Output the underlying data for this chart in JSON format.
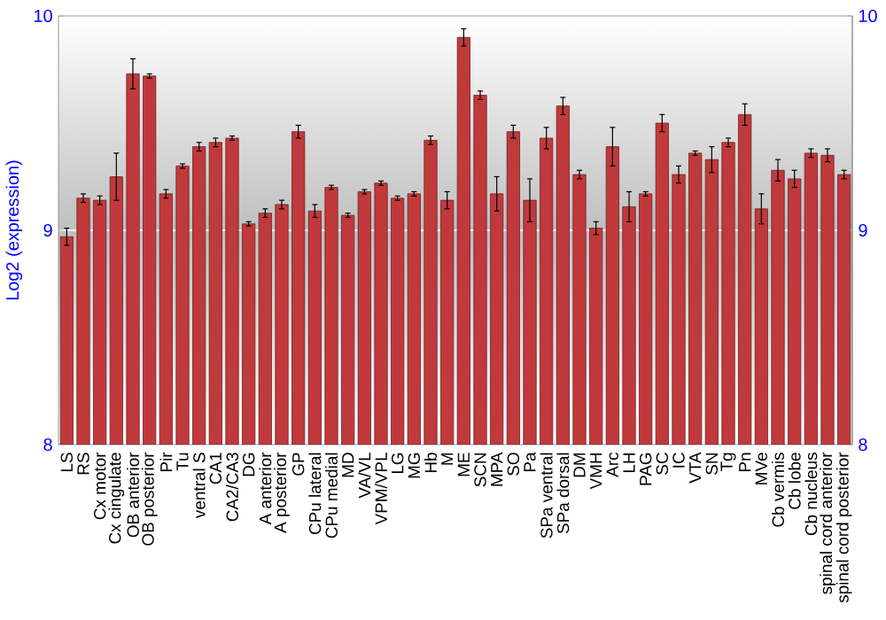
{
  "chart_data": {
    "type": "bar",
    "ylabel": "Log2 (expression)",
    "color": "#c0393b",
    "categories": [
      "LS",
      "RS",
      "Cx motor",
      "Cx cingulate",
      "OB anterior",
      "OB posterior",
      "Pir",
      "Tu",
      "ventral S",
      "CA1",
      "CA2/CA3",
      "DG",
      "A anterior",
      "A posterior",
      "GP",
      "CPu lateral",
      "CPu medial",
      "MD",
      "VA/VL",
      "VPM/VPL",
      "LG",
      "MG",
      "Hb",
      "M",
      "ME",
      "SCN",
      "MPA",
      "SO",
      "Pa",
      "SPa ventral",
      "SPa dorsal",
      "DM",
      "VMH",
      "Arc",
      "LH",
      "PAG",
      "SC",
      "IC",
      "VTA",
      "SN",
      "Tg",
      "Pn",
      "MVe",
      "Cb vermis",
      "Cb lobe",
      "Cb nucleus",
      "spinal cord anterior",
      "spinal cord posterior"
    ],
    "values": [
      8.97,
      9.15,
      9.14,
      9.25,
      9.73,
      9.72,
      9.17,
      9.3,
      9.39,
      9.41,
      9.43,
      9.03,
      9.08,
      9.12,
      9.46,
      9.09,
      9.2,
      9.07,
      9.18,
      9.22,
      9.15,
      9.17,
      9.42,
      9.14,
      9.9,
      9.63,
      9.17,
      9.46,
      9.14,
      9.43,
      9.58,
      9.26,
      9.01,
      9.39,
      9.11,
      9.17,
      9.5,
      9.26,
      9.36,
      9.33,
      9.41,
      9.54,
      9.1,
      9.28,
      9.24,
      9.36,
      9.35,
      9.26
    ],
    "errors": [
      0.04,
      0.02,
      0.02,
      0.11,
      0.07,
      0.01,
      0.02,
      0.01,
      0.02,
      0.02,
      0.01,
      0.01,
      0.02,
      0.02,
      0.03,
      0.03,
      0.01,
      0.01,
      0.01,
      0.01,
      0.01,
      0.01,
      0.02,
      0.04,
      0.04,
      0.02,
      0.08,
      0.03,
      0.1,
      0.05,
      0.04,
      0.02,
      0.03,
      0.09,
      0.07,
      0.01,
      0.04,
      0.04,
      0.01,
      0.06,
      0.02,
      0.05,
      0.07,
      0.05,
      0.04,
      0.02,
      0.03,
      0.02
    ],
    "ylim": [
      8,
      10
    ],
    "yticks": [
      8,
      9,
      10
    ],
    "y2lim": [
      8,
      10
    ],
    "y2ticks": [
      8,
      9,
      10
    ],
    "grid": "y"
  }
}
